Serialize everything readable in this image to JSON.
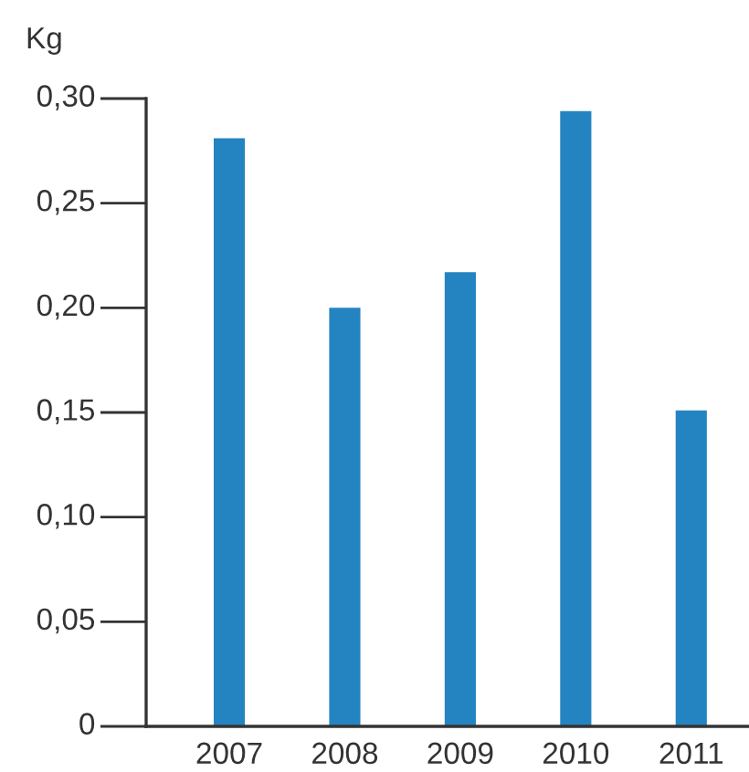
{
  "chart_data": {
    "type": "bar",
    "ylabel": "Kg",
    "categories": [
      "2007",
      "2008",
      "2009",
      "2010",
      "2011"
    ],
    "values": [
      0.281,
      0.2,
      0.217,
      0.294,
      0.151
    ],
    "color": "#2484c1",
    "ylim": [
      0,
      0.3
    ],
    "yticks": [
      0,
      {
        "value": 0.05,
        "label": "0,05"
      },
      {
        "value": 0.1,
        "label": "0,10"
      },
      {
        "value": 0.15,
        "label": "0,15"
      },
      {
        "value": 0.2,
        "label": "0,20"
      },
      {
        "value": 0.25,
        "label": "0,25"
      },
      {
        "value": 0.3,
        "label": "0,30"
      }
    ],
    "grid": false,
    "legend": false
  }
}
